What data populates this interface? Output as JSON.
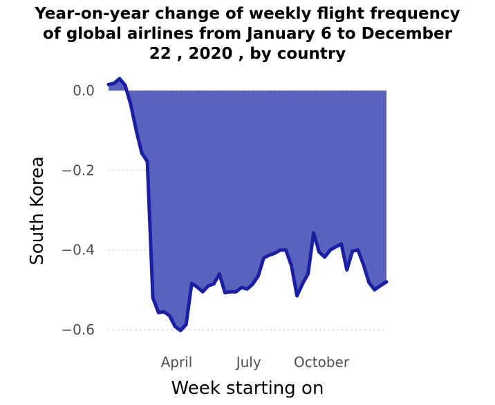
{
  "chart_data": {
    "type": "area",
    "title": "Year-on-year change of weekly flight frequency of global airlines from January 6 to December 22 , 2020 , by country",
    "title_lines": [
      "Year-on-year change of weekly flight frequency",
      "of global airlines from January 6 to December",
      "22 , 2020 , by country"
    ],
    "xlabel": "Week starting on",
    "ylabel": "South Korea",
    "x_ticks": [
      {
        "label": "April",
        "date": "2020-04-01"
      },
      {
        "label": "July",
        "date": "2020-07-01"
      },
      {
        "label": "October",
        "date": "2020-10-01"
      }
    ],
    "y_ticks": [
      {
        "label": "0.0",
        "value": 0.0
      },
      {
        "label": "−0.2",
        "value": -0.2
      },
      {
        "label": "−0.4",
        "value": -0.4
      },
      {
        "label": "−0.6",
        "value": -0.6
      }
    ],
    "ylim": [
      -0.6,
      0.0
    ],
    "xlim": [
      "2020-01-06",
      "2020-12-22"
    ],
    "grid": "horizontal dotted",
    "colors": {
      "line": "#1a1fa3",
      "area": "#5a62bd",
      "grid": "#b0b0b0"
    },
    "series": [
      {
        "x": [
          "2020-01-06",
          "2020-01-13",
          "2020-01-20",
          "2020-01-27",
          "2020-02-03",
          "2020-02-10",
          "2020-02-17",
          "2020-02-24",
          "2020-03-02",
          "2020-03-09",
          "2020-03-16",
          "2020-03-23",
          "2020-03-30",
          "2020-04-06",
          "2020-04-13",
          "2020-04-20",
          "2020-04-27",
          "2020-05-04",
          "2020-05-11",
          "2020-05-18",
          "2020-05-25",
          "2020-06-01",
          "2020-06-08",
          "2020-06-15",
          "2020-06-22",
          "2020-06-29",
          "2020-07-06",
          "2020-07-13",
          "2020-07-20",
          "2020-07-27",
          "2020-08-03",
          "2020-08-10",
          "2020-08-17",
          "2020-08-24",
          "2020-08-31",
          "2020-09-07",
          "2020-09-14",
          "2020-09-21",
          "2020-09-28",
          "2020-10-05",
          "2020-10-12",
          "2020-10-19",
          "2020-10-26",
          "2020-11-02",
          "2020-11-09",
          "2020-11-16",
          "2020-11-23",
          "2020-11-30",
          "2020-12-07",
          "2020-12-14",
          "2020-12-22"
        ],
        "y": [
          0.015,
          0.018,
          0.03,
          0.013,
          -0.035,
          -0.1,
          -0.157,
          -0.178,
          -0.52,
          -0.557,
          -0.555,
          -0.565,
          -0.592,
          -0.602,
          -0.587,
          -0.484,
          -0.493,
          -0.505,
          -0.49,
          -0.485,
          -0.46,
          -0.507,
          -0.505,
          -0.505,
          -0.494,
          -0.498,
          -0.486,
          -0.465,
          -0.42,
          -0.413,
          -0.408,
          -0.4,
          -0.4,
          -0.44,
          -0.515,
          -0.485,
          -0.46,
          -0.357,
          -0.405,
          -0.418,
          -0.4,
          -0.392,
          -0.385,
          -0.45,
          -0.403,
          -0.4,
          -0.437,
          -0.482,
          -0.5,
          -0.49,
          -0.48
        ]
      }
    ]
  }
}
